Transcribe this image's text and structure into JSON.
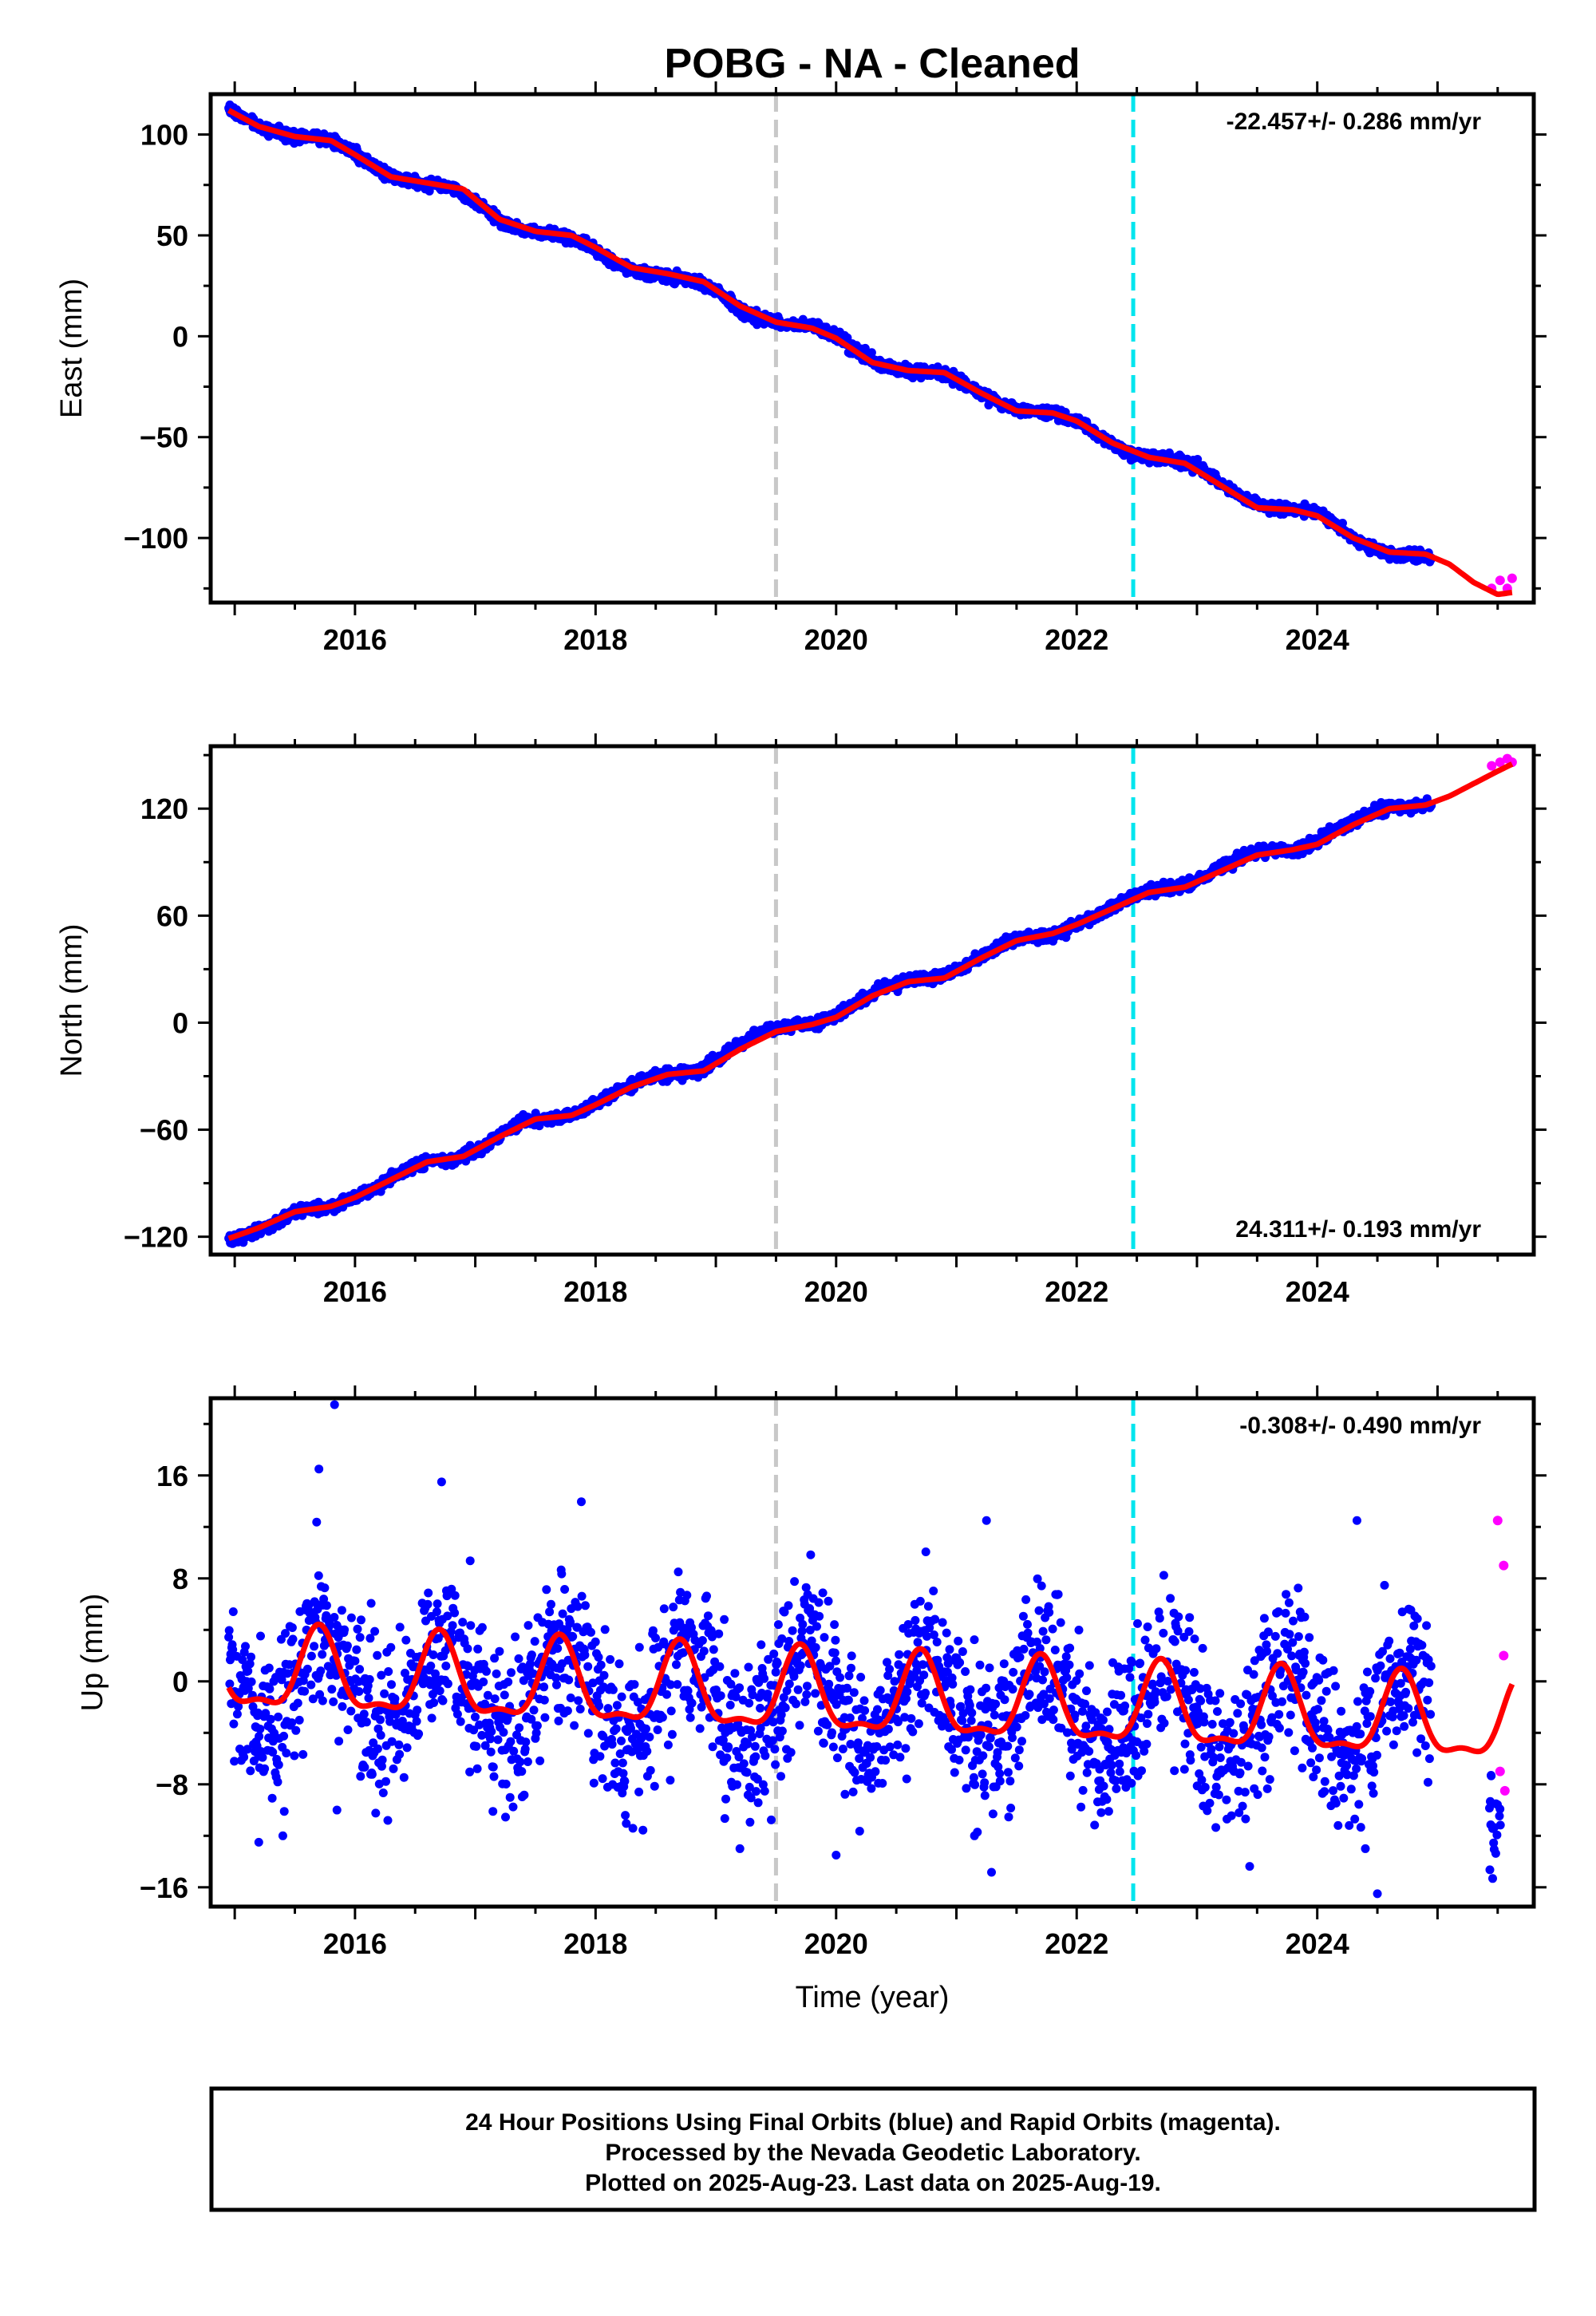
{
  "title": "POBG  - NA - Cleaned",
  "footer": {
    "lines": [
      "24 Hour Positions Using Final Orbits (blue) and Rapid Orbits (magenta).",
      "Processed by the Nevada Geodetic Laboratory.",
      "Plotted on 2025-Aug-23. Last data on 2025-Aug-19."
    ]
  },
  "colors": {
    "final_orbits": "#0000ff",
    "rapid_orbits": "#ff00ff",
    "model_fit": "#ff0000",
    "marker_gray": "#c8c8c8",
    "marker_cyan": "#00e5ee"
  },
  "chart_data": [
    {
      "type": "scatter",
      "ylabel": "East (mm)",
      "xlabel": "",
      "xlim": [
        2014.8,
        2025.8
      ],
      "ylim": [
        -132,
        120
      ],
      "xticks": [
        2016,
        2018,
        2020,
        2022,
        2024
      ],
      "yticks": [
        -100,
        -50,
        0,
        50,
        100
      ],
      "rate": "-22.457+/- 0.286 mm/yr",
      "rate_position": "top-right",
      "vlines": [
        2019.5,
        2022.47
      ],
      "series": [
        {
          "role": "final-orbits",
          "x": [
            2014.95,
            2015.05,
            2015.2,
            2015.4,
            2015.6,
            2015.8,
            2016.0,
            2016.2,
            2016.4,
            2016.6,
            2016.8,
            2017.0,
            2017.2,
            2017.4,
            2017.6,
            2017.8,
            2018.0,
            2018.2,
            2018.4,
            2018.6,
            2018.8,
            2019.0,
            2019.2,
            2019.4,
            2019.6,
            2019.8,
            2020.0,
            2020.2,
            2020.4,
            2020.6,
            2020.8,
            2021.0,
            2021.2,
            2021.4,
            2021.6,
            2021.8,
            2022.0,
            2022.2,
            2022.4,
            2022.6,
            2022.8,
            2023.0,
            2023.2,
            2023.4,
            2023.6,
            2023.8,
            2024.0,
            2024.2,
            2024.4,
            2024.6,
            2024.8,
            2024.95
          ],
          "y": [
            113,
            109,
            104,
            99,
            99,
            97,
            91,
            82,
            77,
            76,
            74,
            67,
            57,
            52,
            51,
            49,
            43,
            35,
            31,
            30,
            28,
            23,
            13,
            8,
            6,
            5,
            0,
            -8,
            -15,
            -17,
            -17,
            -21,
            -28,
            -35,
            -37,
            -38,
            -42,
            -50,
            -57,
            -60,
            -61,
            -64,
            -73,
            -81,
            -85,
            -85,
            -87,
            -95,
            -104,
            -108,
            -108,
            -110
          ]
        },
        {
          "role": "rapid-orbits",
          "x": [
            2025.45,
            2025.52,
            2025.58,
            2025.62
          ],
          "y": [
            -125,
            -121,
            -125,
            -120
          ]
        },
        {
          "role": "model-fit",
          "x": [
            2014.95,
            2015.2,
            2015.5,
            2015.8,
            2016.0,
            2016.3,
            2016.6,
            2016.9,
            2017.2,
            2017.5,
            2017.8,
            2018.0,
            2018.3,
            2018.6,
            2018.9,
            2019.2,
            2019.5,
            2019.8,
            2020.0,
            2020.3,
            2020.6,
            2020.9,
            2021.2,
            2021.5,
            2021.8,
            2022.0,
            2022.3,
            2022.6,
            2022.9,
            2023.2,
            2023.5,
            2023.8,
            2024.0,
            2024.3,
            2024.6,
            2024.9,
            2025.1,
            2025.3,
            2025.5,
            2025.62
          ],
          "y": [
            112,
            104,
            99,
            97,
            90,
            79,
            76,
            73,
            58,
            52,
            50,
            44,
            34,
            31,
            27,
            15,
            7,
            4,
            -1,
            -13,
            -17,
            -18,
            -28,
            -37,
            -38,
            -42,
            -53,
            -60,
            -63,
            -74,
            -85,
            -86,
            -89,
            -100,
            -107,
            -108,
            -113,
            -122,
            -128,
            -127
          ]
        }
      ]
    },
    {
      "type": "scatter",
      "ylabel": "North (mm)",
      "xlabel": "",
      "xlim": [
        2014.8,
        2025.8
      ],
      "ylim": [
        -130,
        155
      ],
      "xticks": [
        2016,
        2018,
        2020,
        2022,
        2024
      ],
      "yticks": [
        -120,
        -60,
        0,
        60,
        120
      ],
      "rate": "24.311+/- 0.193 mm/yr",
      "rate_position": "bottom-right",
      "vlines": [
        2019.5,
        2022.47
      ],
      "series": [
        {
          "role": "final-orbits",
          "x": [
            2014.95,
            2015.2,
            2015.4,
            2015.6,
            2015.8,
            2016.0,
            2016.2,
            2016.4,
            2016.6,
            2016.8,
            2017.0,
            2017.2,
            2017.4,
            2017.6,
            2017.8,
            2018.0,
            2018.2,
            2018.4,
            2018.6,
            2018.8,
            2019.0,
            2019.2,
            2019.4,
            2019.6,
            2019.8,
            2020.0,
            2020.2,
            2020.4,
            2020.6,
            2020.8,
            2021.0,
            2021.2,
            2021.4,
            2021.6,
            2021.8,
            2022.0,
            2022.2,
            2022.4,
            2022.6,
            2022.8,
            2023.0,
            2023.2,
            2023.4,
            2023.6,
            2023.8,
            2024.0,
            2024.2,
            2024.4,
            2024.6,
            2024.8,
            2024.95
          ],
          "y": [
            -122,
            -117,
            -110,
            -104,
            -104,
            -98,
            -92,
            -83,
            -77,
            -77,
            -72,
            -63,
            -55,
            -54,
            -52,
            -45,
            -38,
            -32,
            -29,
            -28,
            -22,
            -12,
            -4,
            -2,
            -1,
            4,
            12,
            20,
            24,
            24,
            29,
            37,
            44,
            48,
            49,
            55,
            61,
            69,
            74,
            75,
            80,
            87,
            94,
            97,
            96,
            102,
            109,
            117,
            121,
            121,
            123
          ]
        },
        {
          "role": "rapid-orbits",
          "x": [
            2025.45,
            2025.52,
            2025.58,
            2025.62
          ],
          "y": [
            144,
            146,
            148,
            146
          ]
        },
        {
          "role": "model-fit",
          "x": [
            2014.95,
            2015.2,
            2015.5,
            2015.8,
            2016.0,
            2016.3,
            2016.6,
            2016.9,
            2017.2,
            2017.5,
            2017.8,
            2018.0,
            2018.3,
            2018.6,
            2018.9,
            2019.2,
            2019.5,
            2019.8,
            2020.0,
            2020.3,
            2020.6,
            2020.9,
            2021.2,
            2021.5,
            2021.8,
            2022.0,
            2022.3,
            2022.6,
            2022.9,
            2023.2,
            2023.5,
            2023.8,
            2024.0,
            2024.3,
            2024.6,
            2024.9,
            2025.1,
            2025.3,
            2025.5,
            2025.62
          ],
          "y": [
            -121,
            -115,
            -106,
            -103,
            -98,
            -88,
            -78,
            -75,
            -64,
            -54,
            -52,
            -46,
            -36,
            -29,
            -27,
            -15,
            -5,
            -1,
            3,
            15,
            23,
            25,
            36,
            46,
            50,
            55,
            64,
            73,
            76,
            85,
            94,
            97,
            100,
            111,
            120,
            122,
            127,
            134,
            141,
            145
          ]
        }
      ]
    },
    {
      "type": "scatter",
      "ylabel": "Up (mm)",
      "xlabel": "Time (year)",
      "xlim": [
        2014.8,
        2025.8
      ],
      "ylim": [
        -17.5,
        22
      ],
      "xticks": [
        2016,
        2018,
        2020,
        2022,
        2024
      ],
      "yticks": [
        -16,
        -8,
        0,
        8,
        16
      ],
      "rate": "-0.308+/- 0.490 mm/yr",
      "rate_position": "top-right",
      "vlines": [
        2019.5,
        2022.47
      ],
      "series": [
        {
          "role": "final-orbits",
          "seasonal_amplitude": 3.5,
          "noise": 3.0,
          "x_range": [
            2014.95,
            2024.95
          ],
          "outliers": [
            [
              2015.83,
              21.5
            ],
            [
              2015.7,
              16.5
            ],
            [
              2016.72,
              15.5
            ],
            [
              2015.85,
              -10.0
            ],
            [
              2015.2,
              -12.5
            ],
            [
              2015.4,
              -12.0
            ],
            [
              2021.25,
              12.5
            ],
            [
              2024.33,
              12.5
            ],
            [
              2024.5,
              -16.5
            ],
            [
              2024.4,
              -13.0
            ],
            [
              2020.0,
              -13.5
            ],
            [
              2021.15,
              -12.0
            ],
            [
              2019.2,
              -13.0
            ]
          ]
        },
        {
          "role": "rapid-orbits",
          "x": [
            2025.5,
            2025.55,
            2025.55,
            2025.52,
            2025.56
          ],
          "y": [
            12.5,
            9.0,
            2.0,
            -7.0,
            -8.5
          ]
        },
        {
          "role": "model-fit",
          "seasonal_amplitude": 3.0,
          "x_range": [
            2014.95,
            2025.62
          ]
        }
      ]
    }
  ]
}
